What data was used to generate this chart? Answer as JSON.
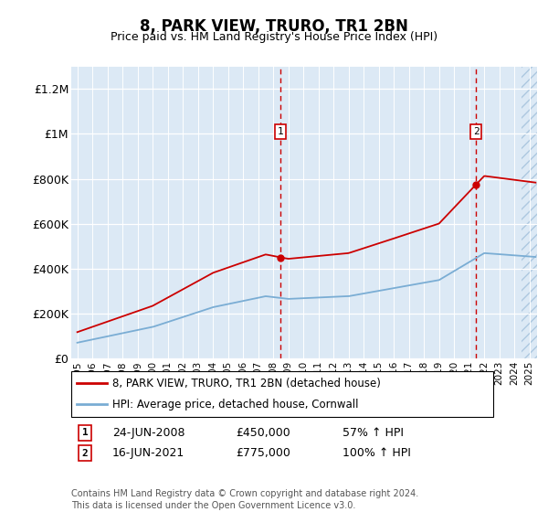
{
  "title": "8, PARK VIEW, TRURO, TR1 2BN",
  "subtitle": "Price paid vs. HM Land Registry's House Price Index (HPI)",
  "xlim": [
    1994.6,
    2025.5
  ],
  "ylim": [
    0,
    1300000
  ],
  "yticks": [
    0,
    200000,
    400000,
    600000,
    800000,
    1000000,
    1200000
  ],
  "ytick_labels": [
    "£0",
    "£200K",
    "£400K",
    "£600K",
    "£800K",
    "£1M",
    "£1.2M"
  ],
  "xtick_years": [
    1995,
    1996,
    1997,
    1998,
    1999,
    2000,
    2001,
    2002,
    2003,
    2004,
    2005,
    2006,
    2007,
    2008,
    2009,
    2010,
    2011,
    2012,
    2013,
    2014,
    2015,
    2016,
    2017,
    2018,
    2019,
    2020,
    2021,
    2022,
    2023,
    2024,
    2025
  ],
  "bg_color": "#dce9f5",
  "grid_color": "#ffffff",
  "sale1_x": 2008.478,
  "sale1_y": 450000,
  "sale2_x": 2021.456,
  "sale2_y": 775000,
  "legend_entries": [
    "8, PARK VIEW, TRURO, TR1 2BN (detached house)",
    "HPI: Average price, detached house, Cornwall"
  ],
  "annotation1_label": "1",
  "annotation1_date": "24-JUN-2008",
  "annotation1_price": "£450,000",
  "annotation1_hpi": "57% ↑ HPI",
  "annotation2_label": "2",
  "annotation2_date": "16-JUN-2021",
  "annotation2_price": "£775,000",
  "annotation2_hpi": "100% ↑ HPI",
  "footer": "Contains HM Land Registry data © Crown copyright and database right 2024.\nThis data is licensed under the Open Government Licence v3.0.",
  "hpi_line_color": "#7aadd4",
  "price_line_color": "#cc0000",
  "sale_marker_color": "#cc0000",
  "dashed_line_color": "#cc0000"
}
